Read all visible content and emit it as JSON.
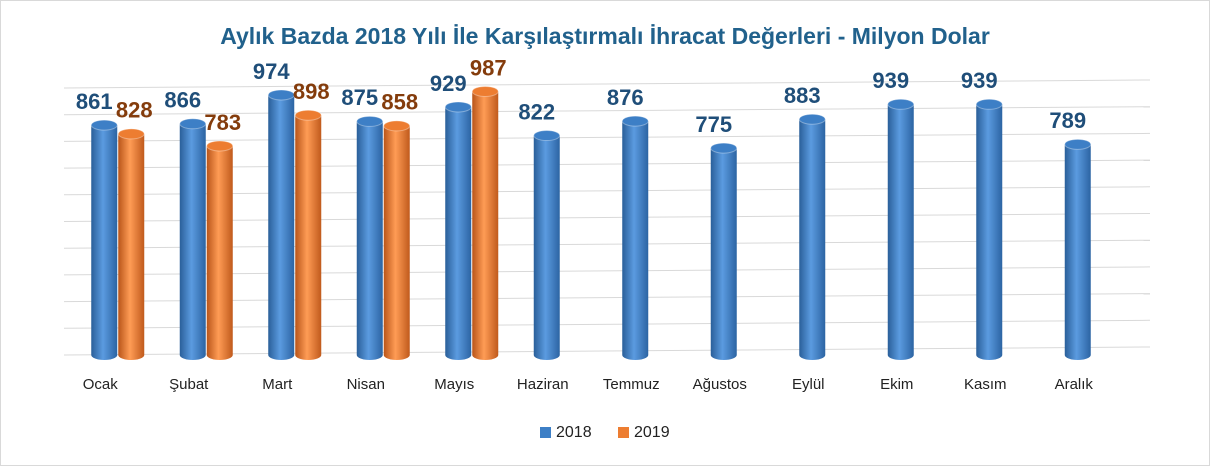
{
  "chart_data": {
    "type": "bar",
    "title": "Aylık Bazda 2018 Yılı İle Karşılaştırmalı İhracat Değerleri - Milyon Dolar",
    "categories": [
      "Ocak",
      "Şubat",
      "Mart",
      "Nisan",
      "Mayıs",
      "Haziran",
      "Temmuz",
      "Ağustos",
      "Eylül",
      "Ekim",
      "Kasım",
      "Aralık"
    ],
    "series": [
      {
        "name": "2018",
        "color": "#3d7fc6",
        "label_color": "#1f4e79",
        "values": [
          861,
          866,
          974,
          875,
          929,
          822,
          876,
          775,
          883,
          939,
          939,
          789
        ]
      },
      {
        "name": "2019",
        "color": "#ed7d31",
        "label_color": "#843c0c",
        "values": [
          828,
          783,
          898,
          858,
          987,
          null,
          null,
          null,
          null,
          null,
          null,
          null
        ]
      }
    ],
    "ylim": [
      0,
      1000
    ],
    "yticks": [
      0,
      100,
      200,
      300,
      400,
      500,
      600,
      700,
      800,
      900,
      1000
    ],
    "grid": true,
    "legend": "bottom"
  }
}
